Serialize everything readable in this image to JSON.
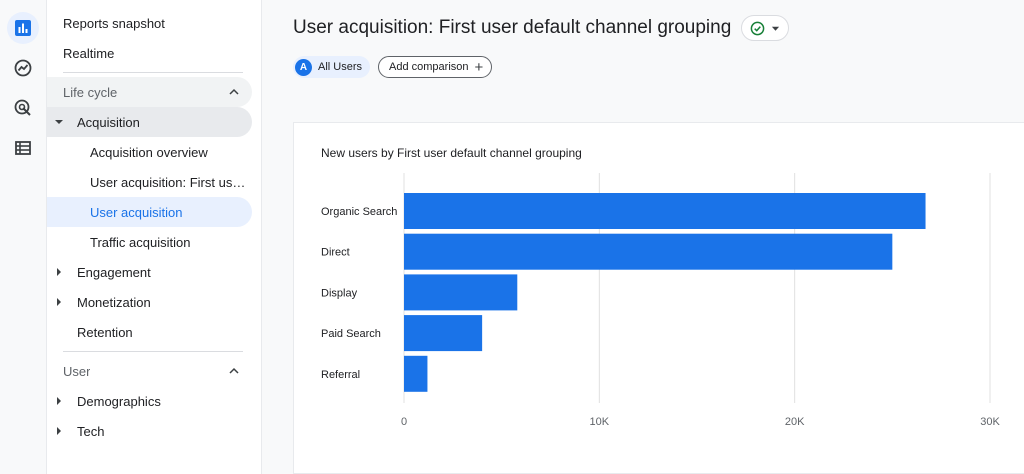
{
  "rail": {
    "icons": [
      "reports-icon",
      "explore-icon",
      "advertising-icon",
      "configure-icon"
    ],
    "accent": "#1a73e8"
  },
  "nav": {
    "reports_snapshot": "Reports snapshot",
    "realtime": "Realtime",
    "lifecycle_section": "Life cycle",
    "acquisition": "Acquisition",
    "acquisition_overview": "Acquisition overview",
    "user_acquisition_first": "User acquisition: First user ...",
    "user_acquisition": "User acquisition",
    "traffic_acquisition": "Traffic acquisition",
    "engagement": "Engagement",
    "monetization": "Monetization",
    "retention": "Retention",
    "user_section": "User",
    "demographics": "Demographics",
    "tech": "Tech"
  },
  "header": {
    "title": "User acquisition: First user default channel grouping"
  },
  "chips": {
    "segment_avatar": "A",
    "segment_label": "All Users",
    "add_comparison": "Add comparison",
    "add_plus": "+"
  },
  "card": {
    "title": "New users by First user default channel grouping"
  },
  "chart_data": {
    "type": "bar",
    "orientation": "horizontal",
    "categories": [
      "Organic Search",
      "Direct",
      "Display",
      "Paid Search",
      "Referral"
    ],
    "values": [
      26700,
      25000,
      5800,
      4000,
      1200
    ],
    "xlim": [
      0,
      30000
    ],
    "x_ticks": [
      0,
      10000,
      20000,
      30000
    ],
    "x_tick_labels": [
      "0",
      "10K",
      "20K",
      "30K"
    ],
    "grid": true,
    "bar_color": "#1a73e8"
  }
}
